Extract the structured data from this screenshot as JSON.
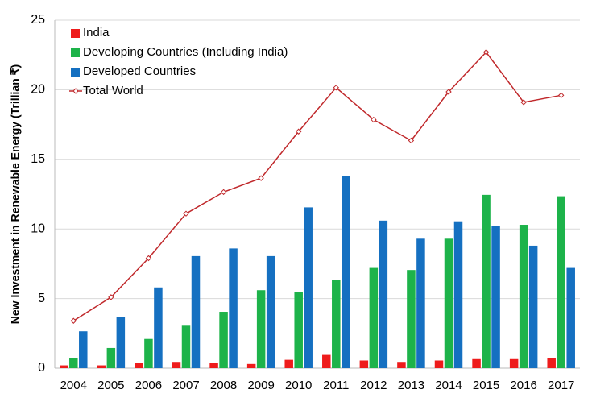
{
  "chart_data": {
    "type": "bar",
    "y_label": "New Investment in Renewable Energy (Trillian ₹)",
    "categories": [
      "2004",
      "2005",
      "2006",
      "2007",
      "2008",
      "2009",
      "2010",
      "2011",
      "2012",
      "2013",
      "2014",
      "2015",
      "2016",
      "2017"
    ],
    "series": [
      {
        "name": "India",
        "color": "#ee1c1c",
        "values": [
          0.2,
          0.2,
          0.35,
          0.45,
          0.4,
          0.3,
          0.6,
          0.95,
          0.55,
          0.45,
          0.55,
          0.65,
          0.65,
          0.75
        ]
      },
      {
        "name": "Developing Countries (Including India)",
        "color": "#1db34a",
        "values": [
          0.7,
          1.45,
          2.1,
          3.05,
          4.05,
          5.6,
          5.45,
          6.35,
          7.2,
          7.05,
          9.3,
          12.45,
          10.3,
          12.35
        ]
      },
      {
        "name": "Developed Countries",
        "color": "#1570c1",
        "values": [
          2.65,
          3.65,
          5.8,
          8.05,
          8.6,
          8.05,
          11.55,
          13.8,
          10.6,
          9.3,
          10.55,
          10.2,
          8.8,
          7.2
        ]
      },
      {
        "name": "Total World",
        "color": "#c0282b",
        "type": "line",
        "values": [
          3.4,
          5.1,
          7.9,
          11.1,
          12.65,
          13.65,
          17.0,
          20.15,
          17.85,
          16.35,
          19.85,
          22.7,
          19.1,
          19.6
        ]
      }
    ],
    "ylim": [
      0,
      25
    ],
    "yticks": [
      0,
      5,
      10,
      15,
      20,
      25
    ],
    "grid": true,
    "legend": "top-left"
  }
}
